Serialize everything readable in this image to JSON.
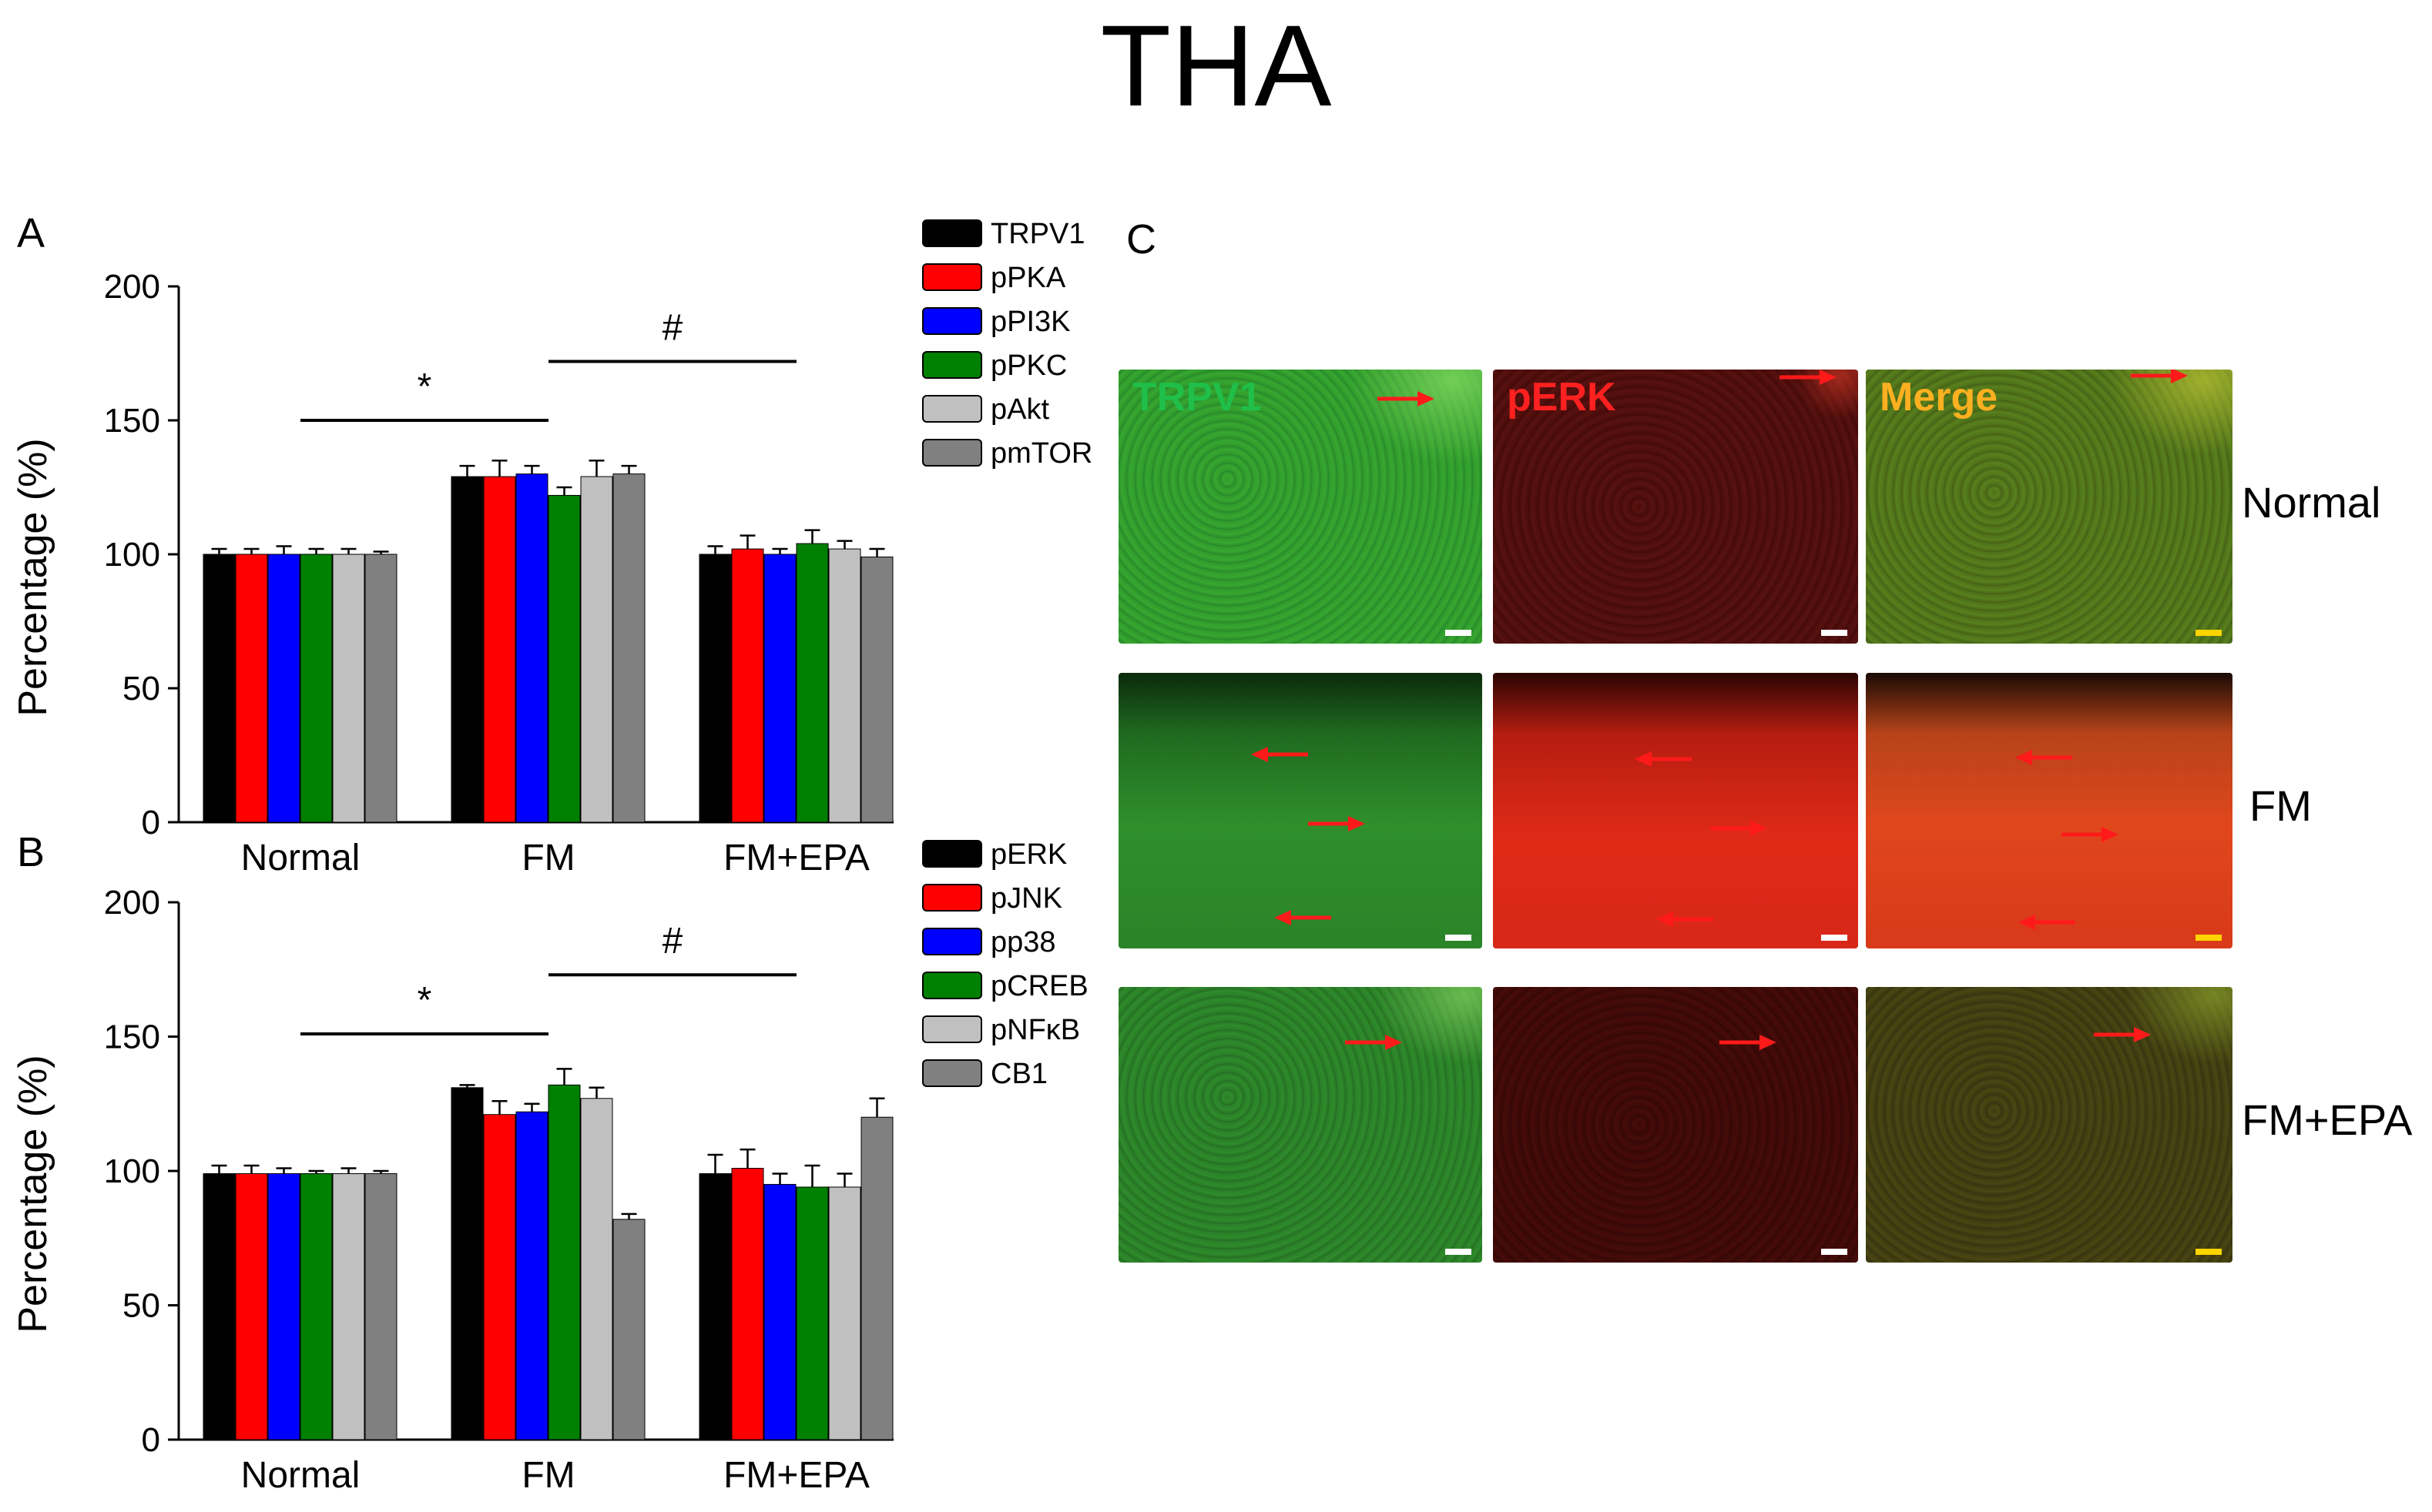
{
  "figure_title": "THA",
  "panel_letters": [
    "A",
    "B",
    "C"
  ],
  "colors": {
    "black": "#000000",
    "red": "#ff0000",
    "blue": "#0000ff",
    "green": "#008000",
    "light_gray": "#c0c0c0",
    "dark_gray": "#808080",
    "tissue_green": "#2e9a2a",
    "tissue_red": "#b71a0c",
    "tissue_merge": "#6a6a15",
    "arrow_red": "#ff1a1a",
    "label_green": "#1fbf4a",
    "label_red": "#ff2020",
    "label_orange": "#ffb020"
  },
  "chart_data": [
    {
      "type": "bar",
      "panel": "A",
      "categories": [
        "Normal",
        "FM",
        "FM+EPA"
      ],
      "ylabel": "Percentage (%)",
      "ylim": [
        0,
        200
      ],
      "yticks": [
        0,
        50,
        100,
        150,
        200
      ],
      "legend_position": "top-right",
      "series": [
        {
          "name": "TRPV1",
          "color": "#000000",
          "values": [
            100,
            129,
            100
          ],
          "errors": [
            2,
            4,
            3
          ]
        },
        {
          "name": "pPKA",
          "color": "#ff0000",
          "values": [
            100,
            129,
            102
          ],
          "errors": [
            2,
            6,
            5
          ]
        },
        {
          "name": "pPI3K",
          "color": "#0000ff",
          "values": [
            100,
            130,
            100
          ],
          "errors": [
            3,
            3,
            2
          ]
        },
        {
          "name": "pPKC",
          "color": "#008000",
          "values": [
            100,
            122,
            104
          ],
          "errors": [
            2,
            3,
            5
          ]
        },
        {
          "name": "pAkt",
          "color": "#c0c0c0",
          "values": [
            100,
            129,
            102
          ],
          "errors": [
            2,
            6,
            3
          ]
        },
        {
          "name": "pmTOR",
          "color": "#808080",
          "values": [
            100,
            130,
            99
          ],
          "errors": [
            1,
            3,
            3
          ]
        }
      ],
      "annotations": [
        {
          "text": "*",
          "from": "Normal",
          "to": "FM",
          "y": 150
        },
        {
          "text": "#",
          "from": "FM",
          "to": "FM+EPA",
          "y": 172
        }
      ]
    },
    {
      "type": "bar",
      "panel": "B",
      "categories": [
        "Normal",
        "FM",
        "FM+EPA"
      ],
      "ylabel": "Percentage (%)",
      "ylim": [
        0,
        200
      ],
      "yticks": [
        0,
        50,
        100,
        150,
        200
      ],
      "legend_position": "top-right",
      "series": [
        {
          "name": "pERK",
          "color": "#000000",
          "values": [
            99,
            131,
            99
          ],
          "errors": [
            3,
            1,
            7
          ]
        },
        {
          "name": "pJNK",
          "color": "#ff0000",
          "values": [
            99,
            121,
            101
          ],
          "errors": [
            3,
            5,
            7
          ]
        },
        {
          "name": "pp38",
          "color": "#0000ff",
          "values": [
            99,
            122,
            95
          ],
          "errors": [
            2,
            3,
            4
          ]
        },
        {
          "name": "pCREB",
          "color": "#008000",
          "values": [
            99,
            132,
            94
          ],
          "errors": [
            1,
            6,
            8
          ]
        },
        {
          "name": "pNFκB",
          "color": "#c0c0c0",
          "values": [
            99,
            127,
            94
          ],
          "errors": [
            2,
            4,
            5
          ]
        },
        {
          "name": "CB1",
          "color": "#808080",
          "values": [
            99,
            82,
            120
          ],
          "errors": [
            1,
            2,
            7
          ]
        }
      ],
      "annotations": [
        {
          "text": "*",
          "from": "Normal",
          "to": "FM",
          "y": 151
        },
        {
          "text": "#",
          "from": "FM",
          "to": "FM+EPA",
          "y": 173
        }
      ]
    }
  ],
  "micrographs": {
    "column_labels": [
      "TRPV1",
      "pERK",
      "Merge"
    ],
    "row_labels": [
      "Normal",
      "FM",
      "FM+EPA"
    ]
  }
}
